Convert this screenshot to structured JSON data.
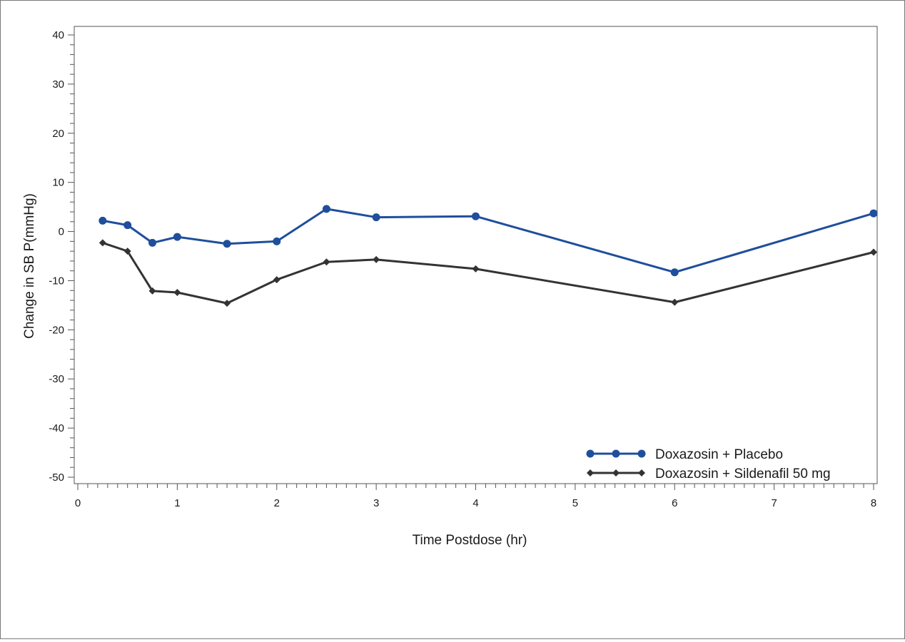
{
  "chart_data": {
    "type": "line",
    "title": "",
    "xlabel": "Time Postdose (hr)",
    "ylabel": "Change in SB P(mmHg)",
    "xlim": [
      0,
      8
    ],
    "ylim": [
      -50,
      40
    ],
    "x_ticks": [
      0,
      1,
      2,
      3,
      4,
      5,
      6,
      7,
      8
    ],
    "x_tick_labels": [
      "0",
      "1",
      "2",
      "3",
      "4",
      "5",
      "6",
      "7",
      "8"
    ],
    "y_ticks": [
      40,
      30,
      20,
      10,
      0,
      -10,
      -20,
      -30,
      -40,
      -50
    ],
    "y_tick_labels": [
      "40",
      "30",
      "20",
      "10",
      "0",
      "-10",
      "-20",
      "-30",
      "-40",
      "-50"
    ],
    "grid": false,
    "legend_position": "bottom-right",
    "series": [
      {
        "name": "Doxazosin + Placebo",
        "marker": "circle",
        "color": "#1f4e9c",
        "x": [
          0.25,
          0.5,
          0.75,
          1,
          1.5,
          2,
          2.5,
          3,
          4,
          6,
          8
        ],
        "y": [
          2.2,
          1.3,
          -2.3,
          -1.1,
          -2.5,
          -2.0,
          4.6,
          2.9,
          3.1,
          -8.3,
          3.7
        ]
      },
      {
        "name": "Doxazosin + Sildenafil 50 mg",
        "marker": "diamond",
        "color": "#333333",
        "x": [
          0.25,
          0.5,
          0.75,
          1,
          1.5,
          2,
          2.5,
          3,
          4,
          6,
          8
        ],
        "y": [
          -2.3,
          -4.0,
          -12.1,
          -12.4,
          -14.6,
          -9.8,
          -6.2,
          -5.7,
          -7.6,
          -14.4,
          -4.2
        ]
      }
    ]
  }
}
